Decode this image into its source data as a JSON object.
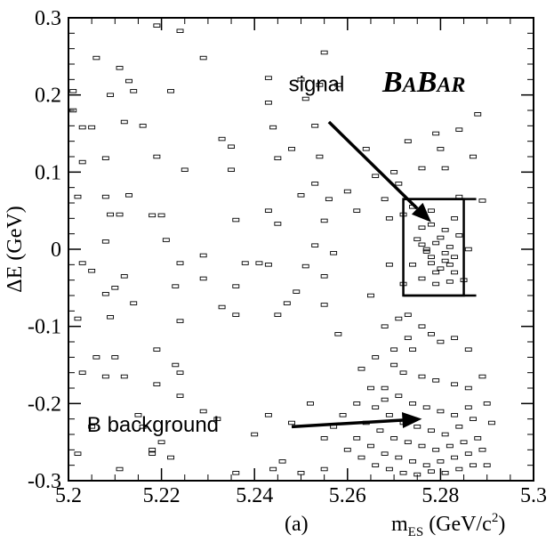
{
  "chart_data": {
    "type": "scatter",
    "title": "",
    "xlabel": "m",
    "xlabel_sub": "ES",
    "xlabel_unit": " (GeV/c",
    "xlabel_sup": "2",
    "xlabel_close": ")",
    "ylabel": "ΔE (GeV)",
    "xlim": [
      5.2,
      5.3
    ],
    "ylim": [
      -0.3,
      0.3
    ],
    "xticks": [
      "5.2",
      "5.22",
      "5.24",
      "5.26",
      "5.28",
      "5.3"
    ],
    "yticks": [
      "-0.3",
      "-0.2",
      "-0.1",
      "0",
      "0.1",
      "0.2",
      "0.3"
    ],
    "grid": false,
    "panel_label": "(a)",
    "experiment_logo": "BABAR",
    "annotations": [
      {
        "text": "signal",
        "label_at": [
          5.255,
          0.2
        ],
        "arrow_from": [
          5.256,
          0.165
        ],
        "arrow_to": [
          5.278,
          0.035
        ]
      },
      {
        "text": "B background",
        "label_at": [
          5.204,
          -0.225
        ],
        "arrow_from": [
          5.248,
          -0.23
        ],
        "arrow_to": [
          5.276,
          -0.22
        ]
      }
    ],
    "signal_box": {
      "x": [
        5.272,
        5.285
      ],
      "y": [
        -0.06,
        0.065
      ]
    },
    "series": [
      {
        "marker": "open-rectangle",
        "points": [
          [
            5.201,
            0.205
          ],
          [
            5.201,
            0.18
          ],
          [
            5.203,
            0.158
          ],
          [
            5.205,
            0.158
          ],
          [
            5.203,
            0.113
          ],
          [
            5.202,
            0.068
          ],
          [
            5.208,
            0.068
          ],
          [
            5.206,
            0.248
          ],
          [
            5.209,
            0.2
          ],
          [
            5.211,
            0.235
          ],
          [
            5.213,
            0.218
          ],
          [
            5.214,
            0.205
          ],
          [
            5.212,
            0.165
          ],
          [
            5.208,
            0.118
          ],
          [
            5.213,
            0.07
          ],
          [
            5.209,
            0.045
          ],
          [
            5.211,
            0.045
          ],
          [
            5.208,
            0.01
          ],
          [
            5.21,
            -0.05
          ],
          [
            5.205,
            -0.028
          ],
          [
            5.203,
            -0.018
          ],
          [
            5.202,
            -0.09
          ],
          [
            5.208,
            -0.058
          ],
          [
            5.209,
            -0.088
          ],
          [
            5.214,
            -0.07
          ],
          [
            5.212,
            -0.035
          ],
          [
            5.216,
            0.16
          ],
          [
            5.219,
            0.29
          ],
          [
            5.222,
            0.205
          ],
          [
            5.224,
            0.283
          ],
          [
            5.219,
            0.12
          ],
          [
            5.225,
            0.103
          ],
          [
            5.221,
            0.012
          ],
          [
            5.224,
            -0.018
          ],
          [
            5.218,
            0.044
          ],
          [
            5.22,
            0.044
          ],
          [
            5.224,
            -0.093
          ],
          [
            5.223,
            -0.048
          ],
          [
            5.229,
            0.248
          ],
          [
            5.233,
            0.143
          ],
          [
            5.235,
            0.133
          ],
          [
            5.235,
            0.103
          ],
          [
            5.236,
            0.038
          ],
          [
            5.238,
            -0.018
          ],
          [
            5.236,
            -0.048
          ],
          [
            5.236,
            -0.085
          ],
          [
            5.233,
            -0.075
          ],
          [
            5.229,
            -0.038
          ],
          [
            5.229,
            -0.008
          ],
          [
            5.241,
            -0.018
          ],
          [
            5.243,
            0.222
          ],
          [
            5.243,
            0.19
          ],
          [
            5.244,
            0.158
          ],
          [
            5.245,
            0.118
          ],
          [
            5.243,
            0.05
          ],
          [
            5.245,
            0.033
          ],
          [
            5.243,
            -0.02
          ],
          [
            5.248,
            0.13
          ],
          [
            5.25,
            0.07
          ],
          [
            5.25,
            0.22
          ],
          [
            5.251,
            0.195
          ],
          [
            5.253,
            0.16
          ],
          [
            5.254,
            0.213
          ],
          [
            5.254,
            0.12
          ],
          [
            5.253,
            0.085
          ],
          [
            5.253,
            0.005
          ],
          [
            5.251,
            -0.022
          ],
          [
            5.249,
            -0.055
          ],
          [
            5.247,
            -0.07
          ],
          [
            5.245,
            -0.085
          ],
          [
            5.255,
            0.255
          ],
          [
            5.258,
            0.213
          ],
          [
            5.256,
            0.065
          ],
          [
            5.255,
            0.037
          ],
          [
            5.257,
            -0.005
          ],
          [
            5.255,
            -0.035
          ],
          [
            5.255,
            -0.072
          ],
          [
            5.258,
            -0.11
          ],
          [
            5.26,
            0.075
          ],
          [
            5.262,
            0.05
          ],
          [
            5.264,
            0.13
          ],
          [
            5.266,
            0.095
          ],
          [
            5.265,
            -0.06
          ],
          [
            5.268,
            0.065
          ],
          [
            5.269,
            0.04
          ],
          [
            5.269,
            -0.02
          ],
          [
            5.27,
            0.1
          ],
          [
            5.271,
            0.085
          ],
          [
            5.273,
            0.14
          ],
          [
            5.272,
            0.045
          ],
          [
            5.272,
            -0.045
          ],
          [
            5.273,
            -0.085
          ],
          [
            5.275,
            0.013
          ],
          [
            5.276,
            0.006
          ],
          [
            5.277,
            -0.003
          ],
          [
            5.278,
            -0.01
          ],
          [
            5.278,
            -0.018
          ],
          [
            5.277,
            0.0
          ],
          [
            5.279,
            0.008
          ],
          [
            5.28,
            0.015
          ],
          [
            5.281,
            -0.005
          ],
          [
            5.281,
            -0.015
          ],
          [
            5.282,
            0.003
          ],
          [
            5.28,
            -0.025
          ],
          [
            5.279,
            -0.03
          ],
          [
            5.282,
            -0.02
          ],
          [
            5.283,
            -0.01
          ],
          [
            5.284,
            0.018
          ],
          [
            5.276,
            0.028
          ],
          [
            5.278,
            0.032
          ],
          [
            5.281,
            0.025
          ],
          [
            5.283,
            -0.03
          ],
          [
            5.276,
            -0.038
          ],
          [
            5.279,
            -0.045
          ],
          [
            5.282,
            -0.042
          ],
          [
            5.285,
            -0.04
          ],
          [
            5.283,
            0.04
          ],
          [
            5.278,
            0.05
          ],
          [
            5.274,
            0.055
          ],
          [
            5.286,
            0.0
          ],
          [
            5.274,
            -0.02
          ],
          [
            5.28,
            0.13
          ],
          [
            5.279,
            0.15
          ],
          [
            5.281,
            0.105
          ],
          [
            5.284,
            0.155
          ],
          [
            5.287,
            0.12
          ],
          [
            5.288,
            0.175
          ],
          [
            5.289,
            0.063
          ],
          [
            5.284,
            0.068
          ],
          [
            5.276,
            0.105
          ],
          [
            5.276,
            -0.1
          ],
          [
            5.278,
            -0.11
          ],
          [
            5.28,
            -0.12
          ],
          [
            5.283,
            -0.115
          ],
          [
            5.286,
            -0.13
          ],
          [
            5.274,
            -0.13
          ],
          [
            5.27,
            -0.15
          ],
          [
            5.272,
            -0.16
          ],
          [
            5.276,
            -0.165
          ],
          [
            5.279,
            -0.17
          ],
          [
            5.283,
            -0.175
          ],
          [
            5.286,
            -0.18
          ],
          [
            5.289,
            -0.165
          ],
          [
            5.268,
            -0.18
          ],
          [
            5.271,
            -0.19
          ],
          [
            5.274,
            -0.2
          ],
          [
            5.277,
            -0.205
          ],
          [
            5.28,
            -0.21
          ],
          [
            5.283,
            -0.215
          ],
          [
            5.286,
            -0.205
          ],
          [
            5.29,
            -0.2
          ],
          [
            5.266,
            -0.205
          ],
          [
            5.269,
            -0.215
          ],
          [
            5.272,
            -0.225
          ],
          [
            5.275,
            -0.23
          ],
          [
            5.278,
            -0.235
          ],
          [
            5.281,
            -0.24
          ],
          [
            5.284,
            -0.23
          ],
          [
            5.287,
            -0.22
          ],
          [
            5.291,
            -0.225
          ],
          [
            5.264,
            -0.225
          ],
          [
            5.267,
            -0.235
          ],
          [
            5.27,
            -0.245
          ],
          [
            5.273,
            -0.25
          ],
          [
            5.276,
            -0.255
          ],
          [
            5.279,
            -0.26
          ],
          [
            5.282,
            -0.255
          ],
          [
            5.285,
            -0.25
          ],
          [
            5.288,
            -0.245
          ],
          [
            5.262,
            -0.245
          ],
          [
            5.265,
            -0.255
          ],
          [
            5.268,
            -0.265
          ],
          [
            5.271,
            -0.27
          ],
          [
            5.274,
            -0.275
          ],
          [
            5.277,
            -0.28
          ],
          [
            5.28,
            -0.275
          ],
          [
            5.283,
            -0.27
          ],
          [
            5.286,
            -0.265
          ],
          [
            5.289,
            -0.26
          ],
          [
            5.266,
            -0.28
          ],
          [
            5.269,
            -0.285
          ],
          [
            5.272,
            -0.29
          ],
          [
            5.275,
            -0.292
          ],
          [
            5.278,
            -0.288
          ],
          [
            5.281,
            -0.29
          ],
          [
            5.284,
            -0.285
          ],
          [
            5.287,
            -0.28
          ],
          [
            5.29,
            -0.28
          ],
          [
            5.263,
            -0.27
          ],
          [
            5.26,
            -0.26
          ],
          [
            5.268,
            -0.195
          ],
          [
            5.265,
            -0.18
          ],
          [
            5.262,
            -0.2
          ],
          [
            5.259,
            -0.215
          ],
          [
            5.257,
            -0.23
          ],
          [
            5.255,
            -0.245
          ],
          [
            5.27,
            -0.13
          ],
          [
            5.273,
            -0.115
          ],
          [
            5.268,
            -0.1
          ],
          [
            5.271,
            -0.09
          ],
          [
            5.266,
            -0.14
          ],
          [
            5.263,
            -0.155
          ],
          [
            5.202,
            -0.265
          ],
          [
            5.203,
            -0.16
          ],
          [
            5.205,
            -0.23
          ],
          [
            5.206,
            -0.14
          ],
          [
            5.208,
            -0.165
          ],
          [
            5.21,
            -0.14
          ],
          [
            5.211,
            -0.285
          ],
          [
            5.212,
            -0.165
          ],
          [
            5.215,
            -0.215
          ],
          [
            5.216,
            -0.23
          ],
          [
            5.218,
            -0.26
          ],
          [
            5.218,
            -0.265
          ],
          [
            5.219,
            -0.13
          ],
          [
            5.219,
            -0.175
          ],
          [
            5.222,
            -0.27
          ],
          [
            5.223,
            -0.15
          ],
          [
            5.224,
            -0.16
          ],
          [
            5.224,
            -0.19
          ],
          [
            5.22,
            -0.25
          ],
          [
            5.229,
            -0.21
          ],
          [
            5.232,
            -0.22
          ],
          [
            5.236,
            -0.29
          ],
          [
            5.24,
            -0.24
          ],
          [
            5.244,
            -0.285
          ],
          [
            5.246,
            -0.275
          ],
          [
            5.25,
            -0.29
          ],
          [
            5.252,
            -0.2
          ],
          [
            5.255,
            -0.285
          ],
          [
            5.248,
            -0.225
          ],
          [
            5.243,
            -0.215
          ]
        ]
      }
    ]
  }
}
